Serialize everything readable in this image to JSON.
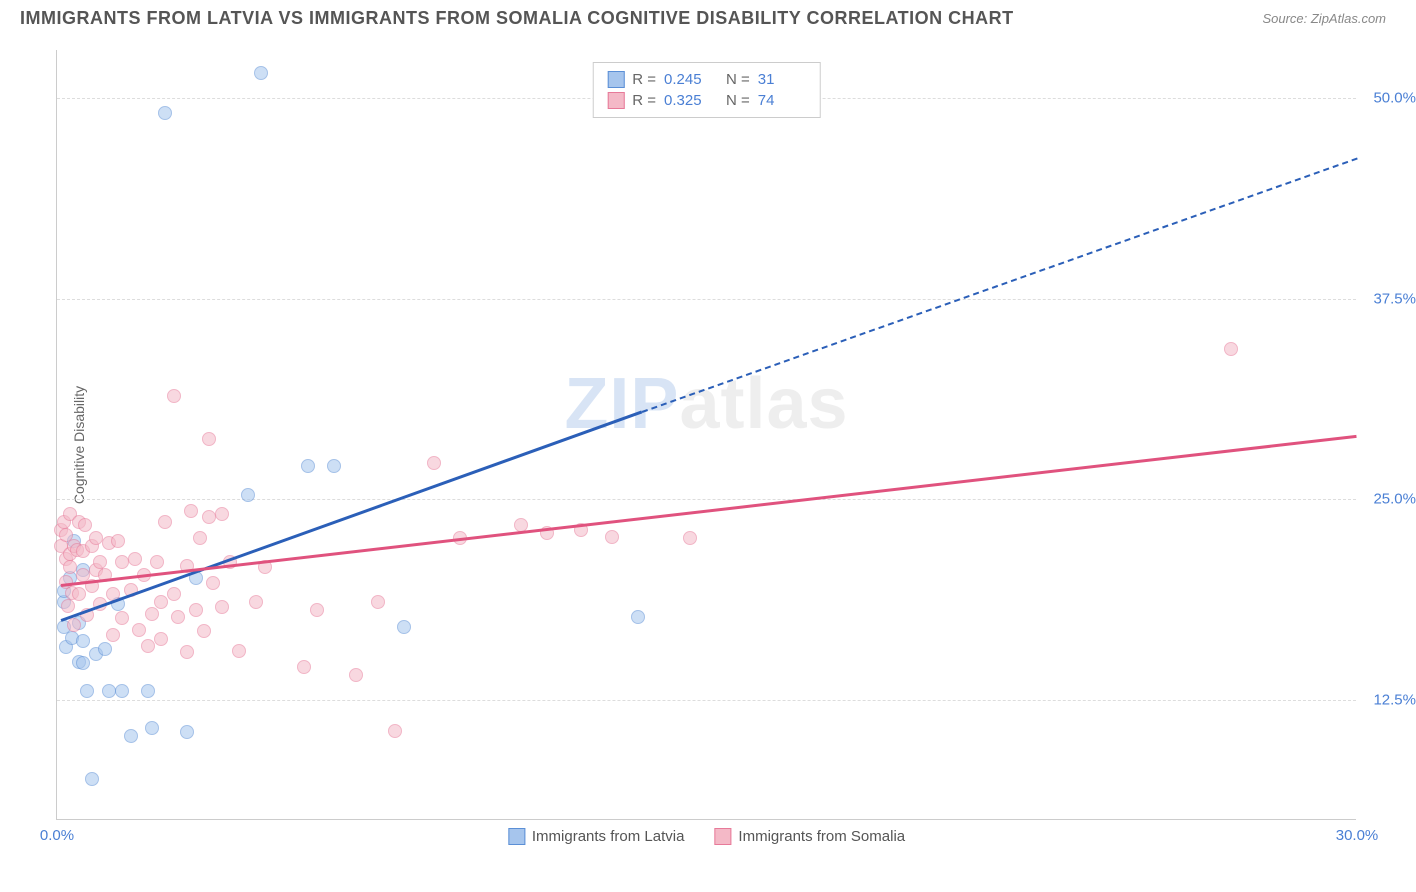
{
  "header": {
    "title": "IMMIGRANTS FROM LATVIA VS IMMIGRANTS FROM SOMALIA COGNITIVE DISABILITY CORRELATION CHART",
    "source": "Source: ZipAtlas.com"
  },
  "chart": {
    "type": "scatter",
    "ylabel": "Cognitive Disability",
    "watermark_a": "ZIP",
    "watermark_b": "atlas",
    "background_color": "#ffffff",
    "grid_color": "#dddddd",
    "axis_color": "#cccccc",
    "tick_color": "#4a7fd4",
    "xlim": [
      0,
      30
    ],
    "ylim": [
      5,
      53
    ],
    "yticks": [
      {
        "value": 12.5,
        "label": "12.5%"
      },
      {
        "value": 25.0,
        "label": "25.0%"
      },
      {
        "value": 37.5,
        "label": "37.5%"
      },
      {
        "value": 50.0,
        "label": "50.0%"
      }
    ],
    "xticks": [
      {
        "value": 0,
        "label": "0.0%"
      },
      {
        "value": 30,
        "label": "30.0%"
      }
    ],
    "series": [
      {
        "name": "Immigrants from Latvia",
        "fill_color": "#a6c5ed",
        "stroke_color": "#5b8fd6",
        "line_color": "#2b5fb8",
        "R": "0.245",
        "N": "31",
        "trend": {
          "x1": 0.1,
          "y1": 17.5,
          "x2": 13.5,
          "y2": 30.5,
          "extend_x2": 30,
          "extend_y2": 46.3
        },
        "points": [
          [
            0.15,
            18.5
          ],
          [
            0.15,
            17.0
          ],
          [
            0.15,
            19.2
          ],
          [
            0.2,
            15.7
          ],
          [
            0.3,
            20.0
          ],
          [
            0.35,
            16.3
          ],
          [
            0.4,
            22.3
          ],
          [
            0.5,
            17.2
          ],
          [
            0.5,
            14.8
          ],
          [
            0.6,
            14.7
          ],
          [
            0.6,
            20.5
          ],
          [
            0.6,
            16.1
          ],
          [
            0.7,
            13.0
          ],
          [
            0.8,
            7.5
          ],
          [
            0.9,
            15.3
          ],
          [
            1.1,
            15.6
          ],
          [
            1.2,
            13.0
          ],
          [
            1.4,
            18.4
          ],
          [
            1.5,
            13.0
          ],
          [
            1.7,
            10.2
          ],
          [
            2.1,
            13.0
          ],
          [
            2.2,
            10.7
          ],
          [
            2.5,
            49.0
          ],
          [
            3.0,
            10.4
          ],
          [
            3.2,
            20.0
          ],
          [
            4.4,
            25.2
          ],
          [
            4.7,
            51.5
          ],
          [
            5.8,
            27.0
          ],
          [
            6.4,
            27.0
          ],
          [
            8.0,
            17.0
          ],
          [
            13.4,
            17.6
          ]
        ]
      },
      {
        "name": "Immigrants from Somalia",
        "fill_color": "#f4b9c7",
        "stroke_color": "#e77a99",
        "line_color": "#e0527e",
        "R": "0.325",
        "N": "74",
        "trend": {
          "x1": 0.1,
          "y1": 19.7,
          "x2": 30,
          "y2": 29.0
        },
        "points": [
          [
            0.1,
            22.0
          ],
          [
            0.1,
            23.0
          ],
          [
            0.15,
            23.5
          ],
          [
            0.2,
            19.8
          ],
          [
            0.2,
            21.2
          ],
          [
            0.2,
            22.7
          ],
          [
            0.25,
            18.3
          ],
          [
            0.3,
            20.7
          ],
          [
            0.3,
            24.0
          ],
          [
            0.3,
            21.5
          ],
          [
            0.35,
            19.1
          ],
          [
            0.4,
            22.0
          ],
          [
            0.4,
            17.1
          ],
          [
            0.45,
            21.8
          ],
          [
            0.5,
            23.5
          ],
          [
            0.5,
            19.0
          ],
          [
            0.6,
            21.7
          ],
          [
            0.6,
            20.2
          ],
          [
            0.65,
            23.3
          ],
          [
            0.7,
            17.7
          ],
          [
            0.8,
            22.0
          ],
          [
            0.8,
            19.5
          ],
          [
            0.9,
            20.5
          ],
          [
            0.9,
            22.5
          ],
          [
            1.0,
            18.4
          ],
          [
            1.0,
            21.0
          ],
          [
            1.1,
            20.2
          ],
          [
            1.2,
            22.2
          ],
          [
            1.3,
            16.5
          ],
          [
            1.3,
            19.0
          ],
          [
            1.4,
            22.3
          ],
          [
            1.5,
            21.0
          ],
          [
            1.5,
            17.5
          ],
          [
            1.7,
            19.3
          ],
          [
            1.8,
            21.2
          ],
          [
            1.9,
            16.8
          ],
          [
            2.0,
            20.2
          ],
          [
            2.1,
            15.8
          ],
          [
            2.2,
            17.8
          ],
          [
            2.3,
            21.0
          ],
          [
            2.4,
            18.5
          ],
          [
            2.4,
            16.2
          ],
          [
            2.5,
            23.5
          ],
          [
            2.7,
            19.0
          ],
          [
            2.7,
            31.4
          ],
          [
            2.8,
            17.6
          ],
          [
            3.0,
            15.4
          ],
          [
            3.0,
            20.8
          ],
          [
            3.1,
            24.2
          ],
          [
            3.2,
            18.0
          ],
          [
            3.3,
            22.5
          ],
          [
            3.4,
            16.7
          ],
          [
            3.5,
            23.8
          ],
          [
            3.5,
            28.7
          ],
          [
            3.6,
            19.7
          ],
          [
            3.8,
            18.2
          ],
          [
            3.8,
            24.0
          ],
          [
            4.0,
            21.0
          ],
          [
            4.2,
            15.5
          ],
          [
            4.6,
            18.5
          ],
          [
            4.8,
            20.7
          ],
          [
            5.7,
            14.5
          ],
          [
            6.0,
            18.0
          ],
          [
            6.9,
            14.0
          ],
          [
            7.4,
            18.5
          ],
          [
            7.8,
            10.5
          ],
          [
            8.7,
            27.2
          ],
          [
            9.3,
            22.5
          ],
          [
            10.7,
            23.3
          ],
          [
            11.3,
            22.8
          ],
          [
            12.1,
            23.0
          ],
          [
            12.8,
            22.6
          ],
          [
            14.6,
            22.5
          ],
          [
            27.1,
            34.3
          ]
        ]
      }
    ],
    "legend_top": {
      "r_label": "R =",
      "n_label": "N ="
    },
    "legend_bottom": [
      {
        "series": 0
      },
      {
        "series": 1
      }
    ]
  }
}
